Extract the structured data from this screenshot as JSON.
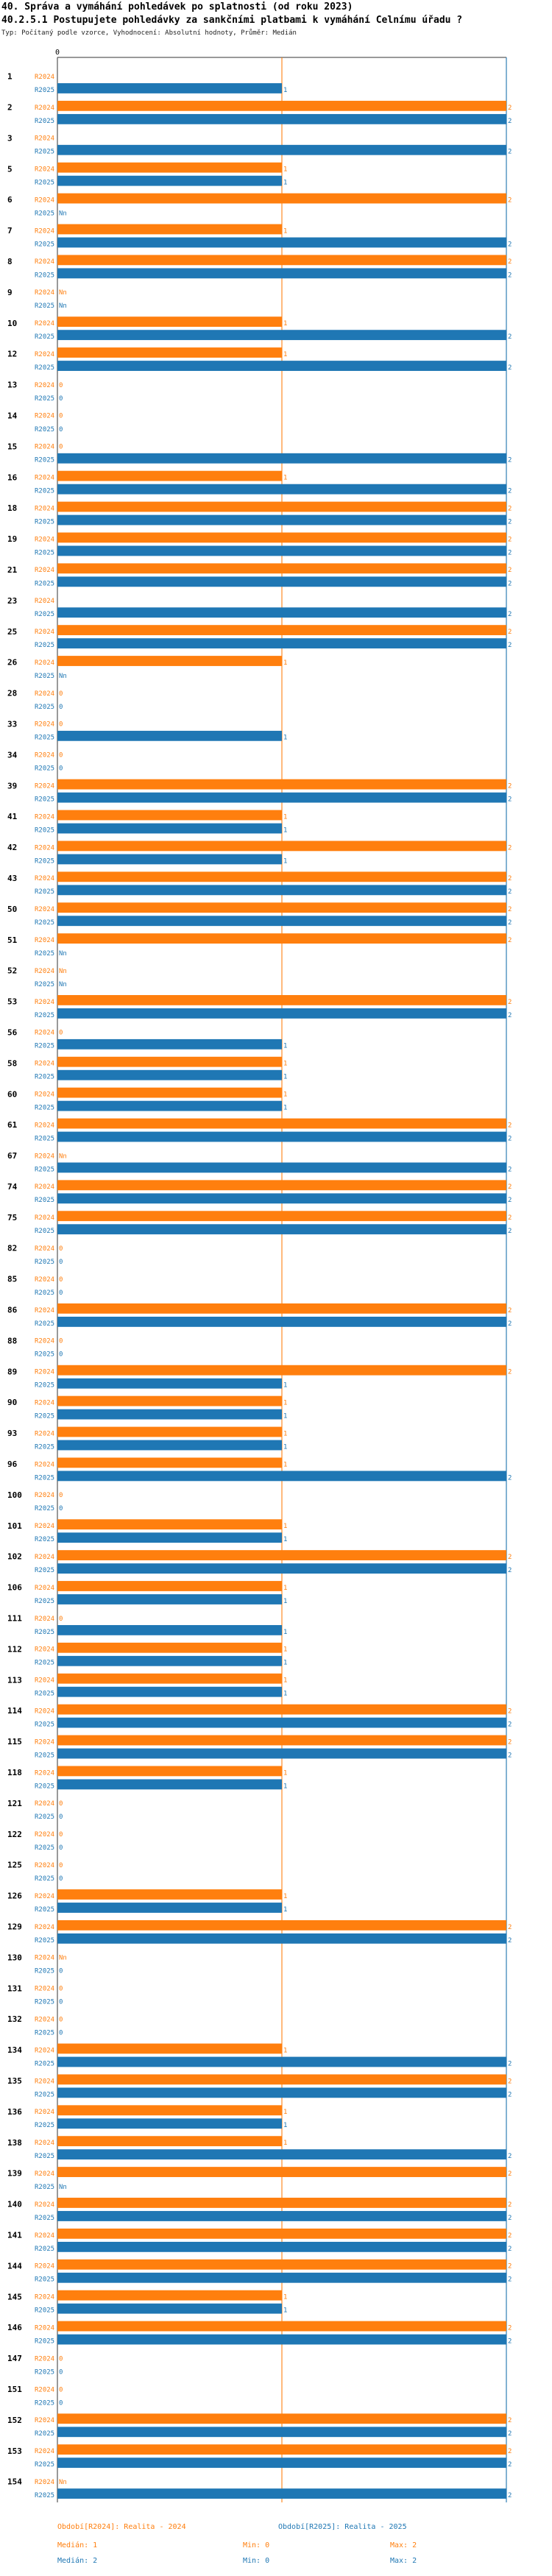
{
  "header": {
    "title": "40. Správa a vymáhání pohledávek po splatnosti (od roku 2023)",
    "question": "40.2.5.1 Postupujete pohledávky za sankčními platbami k vymáhání Celnímu úřadu ?",
    "info": "Typ: Počítaný podle vzorce, Vyhodnocení: Absolutní hodnoty, Průměr: Medián"
  },
  "colors": {
    "r2024": "#ff7f0e",
    "r2025": "#1f77b4"
  },
  "chart_data": {
    "type": "bar",
    "orientation": "horizontal",
    "xlim": [
      0,
      2
    ],
    "x_ticks": [
      "0"
    ],
    "series": [
      {
        "name": "R2024",
        "tag": "R2024",
        "legend": "Období[R2024]: Realita - 2024",
        "median": "Medián: 1",
        "min": "Min: 0",
        "max": "Max: 2"
      },
      {
        "name": "R2025",
        "tag": "R2025",
        "legend": "Období[R2025]: Realita - 2025",
        "median": "Medián: 2",
        "min": "Min: 0",
        "max": "Max: 2"
      }
    ],
    "reference_lines": [
      {
        "series": "R2024",
        "value": 1
      },
      {
        "series": "R2025",
        "value": 2
      }
    ],
    "categories": [
      {
        "id": "1",
        "r2024": null,
        "r2025": 1
      },
      {
        "id": "2",
        "r2024": 2,
        "r2025": 2
      },
      {
        "id": "3",
        "r2024": null,
        "r2025": 2
      },
      {
        "id": "5",
        "r2024": 1,
        "r2025": 1
      },
      {
        "id": "6",
        "r2024": 2,
        "r2025": "Nn"
      },
      {
        "id": "7",
        "r2024": 1,
        "r2025": 2
      },
      {
        "id": "8",
        "r2024": 2,
        "r2025": 2
      },
      {
        "id": "9",
        "r2024": "Nn",
        "r2025": "Nn"
      },
      {
        "id": "10",
        "r2024": 1,
        "r2025": 2
      },
      {
        "id": "12",
        "r2024": 1,
        "r2025": 2
      },
      {
        "id": "13",
        "r2024": 0,
        "r2025": 0
      },
      {
        "id": "14",
        "r2024": 0,
        "r2025": 0
      },
      {
        "id": "15",
        "r2024": 0,
        "r2025": 2
      },
      {
        "id": "16",
        "r2024": 1,
        "r2025": 2
      },
      {
        "id": "18",
        "r2024": 2,
        "r2025": 2
      },
      {
        "id": "19",
        "r2024": 2,
        "r2025": 2
      },
      {
        "id": "21",
        "r2024": 2,
        "r2025": 2
      },
      {
        "id": "23",
        "r2024": null,
        "r2025": 2
      },
      {
        "id": "25",
        "r2024": 2,
        "r2025": 2
      },
      {
        "id": "26",
        "r2024": 1,
        "r2025": "Nn"
      },
      {
        "id": "28",
        "r2024": 0,
        "r2025": 0
      },
      {
        "id": "33",
        "r2024": 0,
        "r2025": 1
      },
      {
        "id": "34",
        "r2024": 0,
        "r2025": 0
      },
      {
        "id": "39",
        "r2024": 2,
        "r2025": 2
      },
      {
        "id": "41",
        "r2024": 1,
        "r2025": 1
      },
      {
        "id": "42",
        "r2024": 2,
        "r2025": 1
      },
      {
        "id": "43",
        "r2024": 2,
        "r2025": 2
      },
      {
        "id": "50",
        "r2024": 2,
        "r2025": 2
      },
      {
        "id": "51",
        "r2024": 2,
        "r2025": "Nn"
      },
      {
        "id": "52",
        "r2024": "Nn",
        "r2025": "Nn"
      },
      {
        "id": "53",
        "r2024": 2,
        "r2025": 2
      },
      {
        "id": "56",
        "r2024": 0,
        "r2025": 1
      },
      {
        "id": "58",
        "r2024": 1,
        "r2025": 1
      },
      {
        "id": "60",
        "r2024": 1,
        "r2025": 1
      },
      {
        "id": "61",
        "r2024": 2,
        "r2025": 2
      },
      {
        "id": "67",
        "r2024": "Nn",
        "r2025": 2
      },
      {
        "id": "74",
        "r2024": 2,
        "r2025": 2
      },
      {
        "id": "75",
        "r2024": 2,
        "r2025": 2
      },
      {
        "id": "82",
        "r2024": 0,
        "r2025": 0
      },
      {
        "id": "85",
        "r2024": 0,
        "r2025": 0
      },
      {
        "id": "86",
        "r2024": 2,
        "r2025": 2
      },
      {
        "id": "88",
        "r2024": 0,
        "r2025": 0
      },
      {
        "id": "89",
        "r2024": 2,
        "r2025": 1
      },
      {
        "id": "90",
        "r2024": 1,
        "r2025": 1
      },
      {
        "id": "93",
        "r2024": 1,
        "r2025": 1
      },
      {
        "id": "96",
        "r2024": 1,
        "r2025": 2
      },
      {
        "id": "100",
        "r2024": 0,
        "r2025": 0
      },
      {
        "id": "101",
        "r2024": 1,
        "r2025": 1
      },
      {
        "id": "102",
        "r2024": 2,
        "r2025": 2
      },
      {
        "id": "106",
        "r2024": 1,
        "r2025": 1
      },
      {
        "id": "111",
        "r2024": 0,
        "r2025": 1
      },
      {
        "id": "112",
        "r2024": 1,
        "r2025": 1
      },
      {
        "id": "113",
        "r2024": 1,
        "r2025": 1
      },
      {
        "id": "114",
        "r2024": 2,
        "r2025": 2
      },
      {
        "id": "115",
        "r2024": 2,
        "r2025": 2
      },
      {
        "id": "118",
        "r2024": 1,
        "r2025": 1
      },
      {
        "id": "121",
        "r2024": 0,
        "r2025": 0
      },
      {
        "id": "122",
        "r2024": 0,
        "r2025": 0
      },
      {
        "id": "125",
        "r2024": 0,
        "r2025": 0
      },
      {
        "id": "126",
        "r2024": 1,
        "r2025": 1
      },
      {
        "id": "129",
        "r2024": 2,
        "r2025": 2
      },
      {
        "id": "130",
        "r2024": "Nn",
        "r2025": 0
      },
      {
        "id": "131",
        "r2024": 0,
        "r2025": 0
      },
      {
        "id": "132",
        "r2024": 0,
        "r2025": 0
      },
      {
        "id": "134",
        "r2024": 1,
        "r2025": 2
      },
      {
        "id": "135",
        "r2024": 2,
        "r2025": 2
      },
      {
        "id": "136",
        "r2024": 1,
        "r2025": 1
      },
      {
        "id": "138",
        "r2024": 1,
        "r2025": 2
      },
      {
        "id": "139",
        "r2024": 2,
        "r2025": "Nn"
      },
      {
        "id": "140",
        "r2024": 2,
        "r2025": 2
      },
      {
        "id": "141",
        "r2024": 2,
        "r2025": 2
      },
      {
        "id": "144",
        "r2024": 2,
        "r2025": 2
      },
      {
        "id": "145",
        "r2024": 1,
        "r2025": 1
      },
      {
        "id": "146",
        "r2024": 2,
        "r2025": 2
      },
      {
        "id": "147",
        "r2024": 0,
        "r2025": 0
      },
      {
        "id": "151",
        "r2024": 0,
        "r2025": 0
      },
      {
        "id": "152",
        "r2024": 2,
        "r2025": 2
      },
      {
        "id": "153",
        "r2024": 2,
        "r2025": 2
      },
      {
        "id": "154",
        "r2024": "Nn",
        "r2025": 2
      }
    ]
  }
}
